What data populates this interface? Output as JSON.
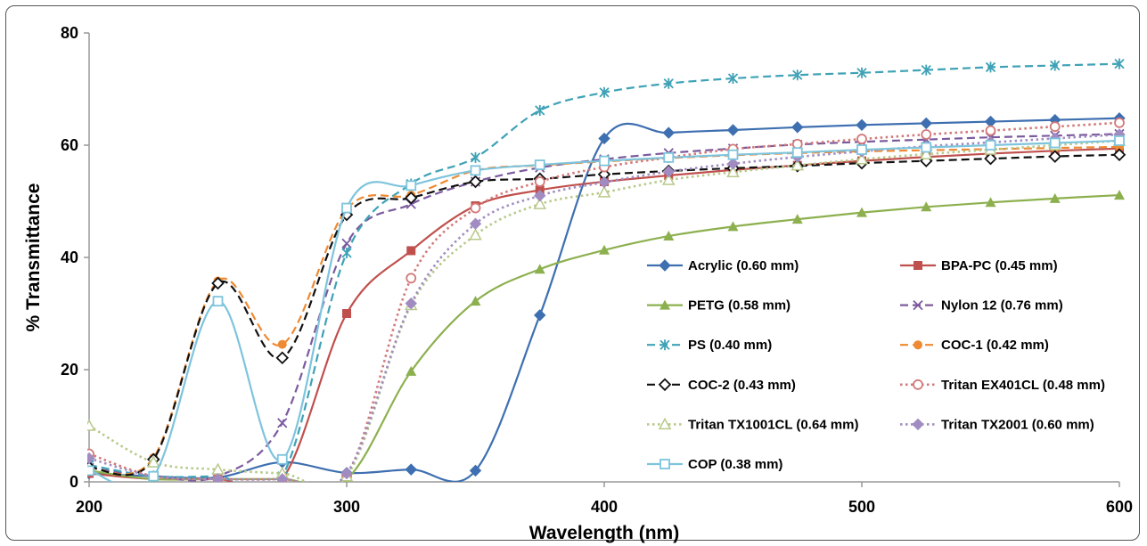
{
  "chart_data": {
    "type": "line",
    "title": "",
    "xlabel": "Wavelength (nm)",
    "ylabel": "% Transmittance",
    "xlim": [
      200,
      600
    ],
    "ylim": [
      0,
      80
    ],
    "xticks": [
      200,
      300,
      400,
      500,
      600
    ],
    "yticks": [
      0,
      20,
      40,
      60,
      80
    ],
    "grid": false,
    "legend": "inside, lower-right, two columns",
    "series": [
      {
        "name": "Acrylic (0.60 mm)",
        "color": "#3e6fb0",
        "dash": "solid",
        "marker": "diamond",
        "x": [
          200,
          225,
          250,
          275,
          300,
          325,
          350,
          375,
          400,
          425,
          450,
          475,
          500,
          525,
          550,
          575,
          600
        ],
        "y": [
          1.5,
          1.0,
          0.8,
          3.5,
          1.6,
          2.2,
          2.0,
          29.7,
          61.2,
          62.2,
          62.7,
          63.2,
          63.6,
          63.9,
          64.2,
          64.5,
          64.8
        ]
      },
      {
        "name": "BPA-PC (0.45 mm)",
        "color": "#c0504d",
        "dash": "solid",
        "marker": "square",
        "x": [
          200,
          225,
          250,
          275,
          300,
          325,
          350,
          375,
          400,
          425,
          450,
          475,
          500,
          525,
          550,
          575,
          600
        ],
        "y": [
          1.5,
          0.5,
          0.5,
          0.5,
          30.0,
          41.2,
          49.2,
          52.0,
          53.5,
          54.6,
          55.6,
          56.4,
          57.2,
          57.9,
          58.5,
          59.0,
          59.4
        ]
      },
      {
        "name": "PETG (0.58 mm)",
        "color": "#8db04f",
        "dash": "solid",
        "marker": "triangle",
        "x": [
          200,
          225,
          250,
          275,
          300,
          325,
          350,
          375,
          400,
          425,
          450,
          475,
          500,
          525,
          550,
          575,
          600
        ],
        "y": [
          2.0,
          0.5,
          0.5,
          0.5,
          0.5,
          19.7,
          32.2,
          37.9,
          41.3,
          43.8,
          45.5,
          46.8,
          48.0,
          49.0,
          49.8,
          50.5,
          51.1
        ]
      },
      {
        "name": "Nylon 12 (0.76 mm)",
        "color": "#7b5a9e",
        "dash": "dash",
        "marker": "x",
        "x": [
          200,
          225,
          250,
          275,
          300,
          325,
          350,
          375,
          400,
          425,
          450,
          475,
          500,
          525,
          550,
          575,
          600
        ],
        "y": [
          2.5,
          1.0,
          1.0,
          10.5,
          42.5,
          49.5,
          53.5,
          56.0,
          57.5,
          58.6,
          59.4,
          60.1,
          60.6,
          61.0,
          61.4,
          61.7,
          62.0
        ]
      },
      {
        "name": "PS (0.40 mm)",
        "color": "#3fa2b6",
        "dash": "dash",
        "marker": "asterisk",
        "x": [
          200,
          225,
          250,
          275,
          300,
          325,
          350,
          375,
          400,
          425,
          450,
          475,
          500,
          525,
          550,
          575,
          600
        ],
        "y": [
          3.0,
          1.0,
          1.0,
          1.0,
          40.8,
          53.1,
          57.8,
          66.2,
          69.4,
          71.0,
          71.9,
          72.5,
          72.9,
          73.4,
          73.9,
          74.2,
          74.5
        ]
      },
      {
        "name": "COC-1 (0.42 mm)",
        "color": "#ee8a33",
        "dash": "dash",
        "marker": "circle",
        "x": [
          200,
          225,
          250,
          275,
          300,
          325,
          350,
          375,
          400,
          425,
          450,
          475,
          500,
          525,
          550,
          575,
          600
        ],
        "y": [
          2.5,
          4.3,
          35.8,
          24.5,
          48.6,
          51.1,
          55.5,
          56.4,
          57.1,
          57.7,
          58.2,
          58.6,
          58.9,
          59.1,
          59.3,
          59.5,
          59.7
        ]
      },
      {
        "name": "COC-2 (0.43 mm)",
        "color": "#111111",
        "dash": "dash",
        "marker": "diamond-open",
        "x": [
          200,
          225,
          250,
          275,
          300,
          325,
          350,
          375,
          400,
          425,
          450,
          475,
          500,
          525,
          550,
          575,
          600
        ],
        "y": [
          2.6,
          4.0,
          35.4,
          22.1,
          47.6,
          50.6,
          53.5,
          54.0,
          54.8,
          55.4,
          55.9,
          56.3,
          56.8,
          57.2,
          57.6,
          58.0,
          58.3
        ]
      },
      {
        "name": "Tritan EX401CL (0.48 mm)",
        "color": "#d37878",
        "dash": "dot",
        "marker": "circle-open",
        "x": [
          200,
          225,
          250,
          275,
          300,
          325,
          350,
          375,
          400,
          425,
          450,
          475,
          500,
          525,
          550,
          575,
          600
        ],
        "y": [
          5.0,
          1.0,
          0.5,
          0.5,
          1.0,
          36.3,
          48.8,
          53.5,
          56.1,
          57.8,
          59.3,
          60.2,
          61.1,
          61.9,
          62.6,
          63.3,
          64.0
        ]
      },
      {
        "name": "Tritan TX1001CL (0.64 mm)",
        "color": "#b7c98a",
        "dash": "dot",
        "marker": "triangle-open",
        "x": [
          200,
          225,
          250,
          275,
          300,
          325,
          350,
          375,
          400,
          425,
          450,
          475,
          500,
          525,
          550,
          575,
          600
        ],
        "y": [
          10.0,
          3.5,
          2.2,
          1.5,
          1.0,
          31.5,
          44.0,
          49.5,
          51.6,
          53.8,
          55.2,
          56.4,
          57.5,
          58.4,
          59.2,
          60.0,
          60.8
        ]
      },
      {
        "name": "Tritan TX2001 (0.60 mm)",
        "color": "#a08cc0",
        "dash": "dot",
        "marker": "diamond",
        "x": [
          200,
          225,
          250,
          275,
          300,
          325,
          350,
          375,
          400,
          425,
          450,
          475,
          500,
          525,
          550,
          575,
          600
        ],
        "y": [
          4.2,
          1.0,
          0.5,
          0.5,
          1.5,
          31.8,
          46.0,
          51.0,
          53.4,
          55.3,
          56.7,
          57.9,
          58.9,
          59.8,
          60.5,
          61.2,
          61.9
        ]
      },
      {
        "name": "COP (0.38 mm)",
        "color": "#7ec4dc",
        "dash": "solid",
        "marker": "square-open",
        "x": [
          200,
          225,
          250,
          275,
          300,
          325,
          350,
          375,
          400,
          425,
          450,
          475,
          500,
          525,
          550,
          575,
          600
        ],
        "y": [
          2.0,
          1.0,
          32.2,
          4.0,
          48.8,
          52.8,
          55.5,
          56.5,
          57.2,
          57.8,
          58.3,
          58.7,
          59.2,
          59.6,
          60.0,
          60.4,
          60.8
        ]
      }
    ]
  }
}
